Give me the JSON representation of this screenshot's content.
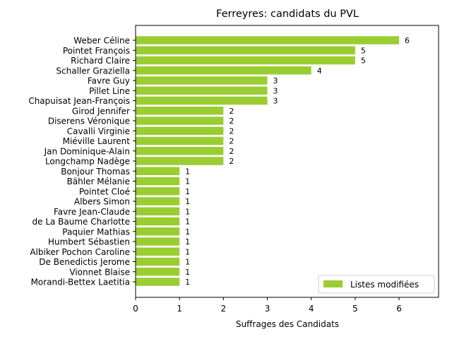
{
  "chart_data": {
    "type": "bar",
    "orientation": "horizontal",
    "title": "Ferreyres: candidats du PVL",
    "xlabel": "Suffrages des Candidats",
    "ylabel": "",
    "xlim": [
      0,
      6.9
    ],
    "xticks": [
      0,
      1,
      2,
      3,
      4,
      5,
      6
    ],
    "bar_color": "#9acd32",
    "grid": false,
    "legend": {
      "position": "lower-right",
      "entries": [
        "Listes modifiées"
      ]
    },
    "categories": [
      "Weber Céline",
      "Pointet François",
      "Richard Claire",
      "Schaller Graziella",
      "Favre Guy",
      "Pillet Line",
      "Chapuisat Jean-François",
      "Girod Jennifer",
      "Diserens Véronique",
      "Cavalli Virginie",
      "Miéville Laurent",
      "Jan Dominique-Alain",
      "Longchamp Nadège",
      "Bonjour Thomas",
      "Bähler Mélanie",
      "Pointet Cloé",
      "Albers Simon",
      "Favre Jean-Claude",
      "de La Baume Charlotte",
      "Paquier Mathias",
      "Humbert Sébastien",
      "Albiker Pochon Caroline",
      "De Benedictis Jerome",
      "Vionnet Blaise",
      "Morandi-Bettex Laetitia"
    ],
    "series": [
      {
        "name": "Listes modifiées",
        "values": [
          6,
          5,
          5,
          4,
          3,
          3,
          3,
          2,
          2,
          2,
          2,
          2,
          2,
          1,
          1,
          1,
          1,
          1,
          1,
          1,
          1,
          1,
          1,
          1,
          1
        ]
      }
    ]
  }
}
